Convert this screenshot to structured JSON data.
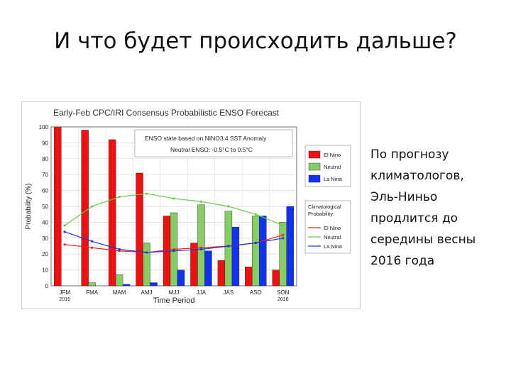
{
  "slide": {
    "title": "И что будет происходить дальше?",
    "side_text_lines": [
      "По прогнозу",
      "климатологов,",
      "Эль-Ниньо",
      "продлится до",
      "середины весны",
      "2016 года"
    ]
  },
  "chart_data": {
    "type": "bar",
    "title": "Early-Feb CPC/IRI Consensus Probabilistic ENSO Forecast",
    "annotation_lines": [
      "ENSO state based on NINO3.4 SST Anomaly",
      "Neutral ENSO: -0.5°C to 0.5°C"
    ],
    "xlabel": "Time Period",
    "ylabel": "Probability (%)",
    "ylim": [
      0,
      100
    ],
    "yticks": [
      0,
      10,
      20,
      30,
      40,
      50,
      60,
      70,
      80,
      90,
      100
    ],
    "categories": [
      "JFM",
      "FMA",
      "MAM",
      "AMJ",
      "MJJ",
      "JJA",
      "JAS",
      "ASO",
      "SON"
    ],
    "year_labels": [
      {
        "index": 0,
        "text": "2016"
      },
      {
        "index": 8,
        "text": "2016"
      }
    ],
    "grid": true,
    "legend_position": "right",
    "series": [
      {
        "name": "El Nino",
        "color": "#ee1111",
        "values": [
          100,
          98,
          92,
          71,
          44,
          27,
          16,
          12,
          10
        ]
      },
      {
        "name": "Neutral",
        "color": "#88cc66",
        "values": [
          0,
          2,
          7,
          27,
          46,
          51,
          47,
          44,
          40
        ]
      },
      {
        "name": "La Nina",
        "color": "#1133ee",
        "values": [
          0,
          0,
          1,
          2,
          10,
          22,
          37,
          44,
          50
        ]
      }
    ],
    "climatology_title_lines": [
      "Climatological",
      "Probability:"
    ],
    "climatology": [
      {
        "name": "El Nino",
        "color": "#ee2222",
        "values": [
          26,
          24,
          22,
          21,
          23,
          24,
          25,
          27,
          32
        ]
      },
      {
        "name": "Neutral",
        "color": "#66cc44",
        "values": [
          38,
          50,
          56,
          58,
          55,
          53,
          50,
          45,
          38
        ]
      },
      {
        "name": "La Nina",
        "color": "#2233dd",
        "values": [
          34,
          28,
          23,
          21,
          22,
          23,
          25,
          27,
          30
        ]
      }
    ]
  }
}
